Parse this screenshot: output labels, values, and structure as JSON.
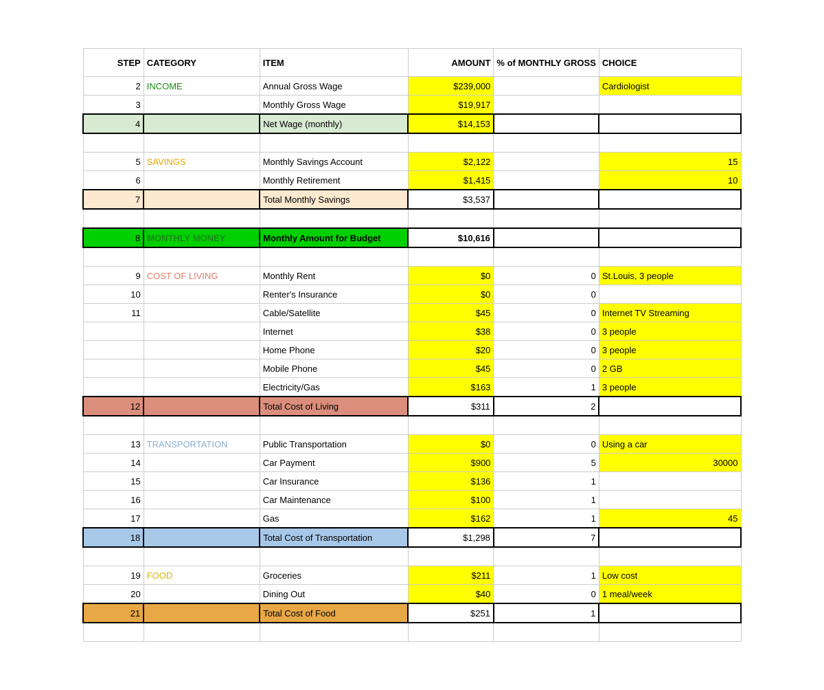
{
  "headers": {
    "step": "STEP",
    "category": "CATEGORY",
    "item": "ITEM",
    "amount": "AMOUNT",
    "pct": "% of MONTHLY GROSS",
    "choice": "CHOICE"
  },
  "rows": [
    {
      "step": "2",
      "category": "INCOME",
      "catClass": "cat-income",
      "item": "Annual Gross Wage",
      "amount": "$239,000",
      "amountBg": "yellow",
      "pct": "",
      "choice": "Cardiologist",
      "choiceBg": "yellow"
    },
    {
      "step": "3",
      "category": "",
      "item": "Monthly Gross Wage",
      "amount": "$19,917",
      "amountBg": "yellow",
      "pct": "",
      "choice": ""
    },
    {
      "step": "4",
      "category": "",
      "item": "Net Wage (monthly)",
      "amount": "$14,153",
      "amountBg": "yellow",
      "pct": "",
      "choice": "",
      "rowBg": "green-lt",
      "thick": true
    },
    {
      "blank": true
    },
    {
      "step": "5",
      "category": "SAVINGS",
      "catClass": "cat-savings",
      "item": "Monthly Savings Account",
      "amount": "$2,122",
      "amountBg": "yellow",
      "pct": "",
      "choice": "15",
      "choiceBg": "yellow",
      "choiceAlign": "r"
    },
    {
      "step": "6",
      "category": "",
      "item": "Monthly Retirement",
      "amount": "$1,415",
      "amountBg": "yellow",
      "pct": "",
      "choice": "10",
      "choiceBg": "yellow",
      "choiceAlign": "r"
    },
    {
      "step": "7",
      "category": "",
      "item": "Total Monthly Savings",
      "amount": "$3,537",
      "pct": "",
      "choice": "",
      "rowBg": "tan",
      "thick": true
    },
    {
      "blank": true
    },
    {
      "step": "8",
      "category": "MONTHLY MONEY",
      "catClass": "cat-monthly",
      "item": "Monthly Amount for Budget",
      "itemBold": true,
      "amount": "$10,616",
      "amountBold": true,
      "pct": "",
      "choice": "",
      "rowBg": "green-br",
      "thick": true
    },
    {
      "blank": true
    },
    {
      "step": "9",
      "category": "COST OF LIVING",
      "catClass": "cat-living",
      "item": "Monthly Rent",
      "amount": "$0",
      "amountBg": "yellow",
      "pct": "0",
      "choice": "St.Louis, 3 people",
      "choiceBg": "yellow"
    },
    {
      "step": "10",
      "category": "",
      "item": "Renter's Insurance",
      "amount": "$0",
      "amountBg": "yellow",
      "pct": "0",
      "choice": ""
    },
    {
      "step": "11",
      "category": "",
      "item": "Cable/Satellite",
      "amount": "$45",
      "amountBg": "yellow",
      "pct": "0",
      "choice": "Internet TV Streaming",
      "choiceBg": "yellow"
    },
    {
      "step": "",
      "category": "",
      "item": "Internet",
      "amount": "$38",
      "amountBg": "yellow",
      "pct": "0",
      "choice": "3 people",
      "choiceBg": "yellow"
    },
    {
      "step": "",
      "category": "",
      "item": "Home Phone",
      "amount": "$20",
      "amountBg": "yellow",
      "pct": "0",
      "choice": "3 people",
      "choiceBg": "yellow"
    },
    {
      "step": "",
      "category": "",
      "item": "Mobile Phone",
      "amount": "$45",
      "amountBg": "yellow",
      "pct": "0",
      "choice": "2 GB",
      "choiceBg": "yellow"
    },
    {
      "step": "",
      "category": "",
      "item": "Electricity/Gas",
      "amount": "$163",
      "amountBg": "yellow",
      "pct": "1",
      "choice": "3 people",
      "choiceBg": "yellow"
    },
    {
      "step": "12",
      "category": "",
      "item": "Total Cost of Living",
      "amount": "$311",
      "pct": "2",
      "choice": "",
      "rowBg": "salmon",
      "thick": true
    },
    {
      "blank": true
    },
    {
      "step": "13",
      "category": "TRANSPORTATION",
      "catClass": "cat-transport",
      "item": "Public Transportation",
      "amount": "$0",
      "amountBg": "yellow",
      "pct": "0",
      "choice": "Using a car",
      "choiceBg": "yellow"
    },
    {
      "step": "14",
      "category": "",
      "item": "Car Payment",
      "amount": "$900",
      "amountBg": "yellow",
      "pct": "5",
      "choice": "30000",
      "choiceBg": "yellow",
      "choiceAlign": "r"
    },
    {
      "step": "15",
      "category": "",
      "item": "Car Insurance",
      "amount": "$136",
      "amountBg": "yellow",
      "pct": "1",
      "choice": ""
    },
    {
      "step": "16",
      "category": "",
      "item": "Car Maintenance",
      "amount": "$100",
      "amountBg": "yellow",
      "pct": "1",
      "choice": ""
    },
    {
      "step": "17",
      "category": "",
      "item": "Gas",
      "amount": "$162",
      "amountBg": "yellow",
      "pct": "1",
      "choice": "45",
      "choiceBg": "yellow",
      "choiceAlign": "r"
    },
    {
      "step": "18",
      "category": "",
      "item": "Total Cost of Transportation",
      "amount": "$1,298",
      "pct": "7",
      "choice": "",
      "rowBg": "blue-lt",
      "thick": true
    },
    {
      "blank": true
    },
    {
      "step": "19",
      "category": "FOOD",
      "catClass": "cat-food",
      "item": "Groceries",
      "amount": "$211",
      "amountBg": "yellow",
      "pct": "1",
      "choice": "Low cost",
      "choiceBg": "yellow"
    },
    {
      "step": "20",
      "category": "",
      "item": "Dining Out",
      "amount": "$40",
      "amountBg": "yellow",
      "pct": "0",
      "choice": "1 meal/week",
      "choiceBg": "yellow"
    },
    {
      "step": "21",
      "category": "",
      "item": "Total Cost of Food",
      "amount": "$251",
      "pct": "1",
      "choice": "",
      "rowBg": "orange",
      "thick": true
    },
    {
      "blank": true
    }
  ]
}
